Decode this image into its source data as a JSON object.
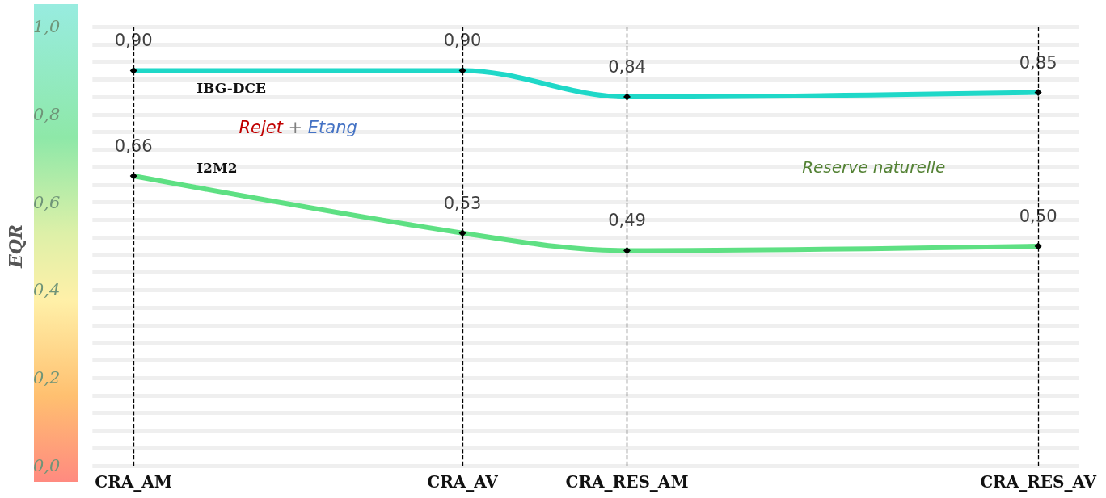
{
  "chart_data": {
    "type": "line",
    "ylabel": "EQR",
    "categories": [
      "CRA_AM",
      null,
      null,
      null,
      "CRA_AV",
      null,
      "CRA_RES_AM",
      null,
      null,
      null,
      null,
      "CRA_RES_AV"
    ],
    "series": [
      {
        "name": "IBG-DCE",
        "color": "#1fd8c8",
        "values": [
          0.9,
          null,
          null,
          null,
          0.9,
          null,
          0.84,
          null,
          null,
          null,
          null,
          0.85
        ],
        "value_labels": [
          "0,90",
          null,
          null,
          null,
          "0,90",
          null,
          "0,84",
          null,
          null,
          null,
          null,
          "0,85"
        ]
      },
      {
        "name": "I2M2",
        "color": "#5ee083",
        "values": [
          0.66,
          null,
          null,
          null,
          0.53,
          null,
          0.49,
          null,
          null,
          null,
          null,
          0.5
        ],
        "value_labels": [
          "0,66",
          null,
          null,
          null,
          "0,53",
          null,
          "0,49",
          null,
          null,
          null,
          null,
          "0,50"
        ]
      }
    ],
    "ylim": [
      0,
      1
    ],
    "yticks": [
      {
        "value": 0,
        "label": "0,0"
      },
      {
        "value": 0.04,
        "label": null
      },
      {
        "value": 0.08,
        "label": null
      },
      {
        "value": 0.12,
        "label": null
      },
      {
        "value": 0.16,
        "label": null
      },
      {
        "value": 0.2,
        "label": "0,2"
      },
      {
        "value": 0.24,
        "label": null
      },
      {
        "value": 0.28,
        "label": null
      },
      {
        "value": 0.32,
        "label": null
      },
      {
        "value": 0.36,
        "label": null
      },
      {
        "value": 0.4,
        "label": "0,4"
      },
      {
        "value": 0.44,
        "label": null
      },
      {
        "value": 0.48,
        "label": null
      },
      {
        "value": 0.52,
        "label": null
      },
      {
        "value": 0.56,
        "label": null
      },
      {
        "value": 0.6,
        "label": "0,6"
      },
      {
        "value": 0.64,
        "label": null
      },
      {
        "value": 0.68,
        "label": null
      },
      {
        "value": 0.72,
        "label": null
      },
      {
        "value": 0.76,
        "label": null
      },
      {
        "value": 0.8,
        "label": "0,8"
      },
      {
        "value": 0.84,
        "label": null
      },
      {
        "value": 0.88,
        "label": null
      },
      {
        "value": 0.92,
        "label": null
      },
      {
        "value": 0.96,
        "label": null
      },
      {
        "value": 1,
        "label": "1,0"
      }
    ],
    "grid": "y",
    "legend": false,
    "marker": "diamond",
    "line_style": "solid",
    "ref_lines": [
      {
        "axis": "x",
        "value": "CRA_AM",
        "color": "#000000",
        "line_style": "dashed"
      },
      {
        "axis": "x",
        "value": "CRA_AV",
        "color": "#000000",
        "line_style": "dashed"
      },
      {
        "axis": "x",
        "value": "CRA_RES_AM",
        "color": "#000000",
        "line_style": "dashed"
      },
      {
        "axis": "x",
        "value": "CRA_RES_AV",
        "color": "#000000",
        "line_style": "dashed"
      }
    ],
    "annotations": [
      "Rejet + Etang",
      "Reserve naturelle"
    ]
  }
}
